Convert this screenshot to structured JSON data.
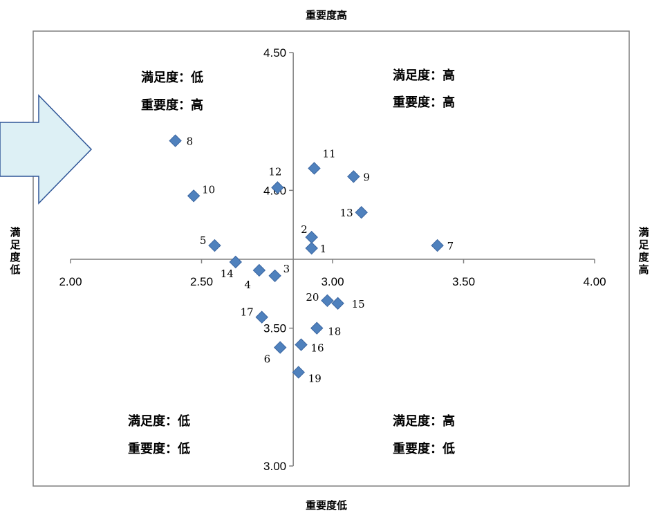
{
  "chart_data": {
    "type": "scatter",
    "xlim": [
      2.0,
      4.0
    ],
    "ylim": [
      3.0,
      4.5
    ],
    "x_ticks": [
      "2.00",
      "2.50",
      "3.00",
      "3.50",
      "4.00"
    ],
    "y_ticks": [
      "3.00",
      "3.50",
      "4.00",
      "4.50"
    ],
    "x_cross": 3.75,
    "y_cross": 2.85,
    "grid": false,
    "marker_color": "#4F81BD",
    "marker_stroke": "#3A65A0",
    "points": [
      {
        "id": "1",
        "x": 2.92,
        "y": 3.79
      },
      {
        "id": "2",
        "x": 2.92,
        "y": 3.83
      },
      {
        "id": "3",
        "x": 2.78,
        "y": 3.69
      },
      {
        "id": "4",
        "x": 2.72,
        "y": 3.71
      },
      {
        "id": "5",
        "x": 2.55,
        "y": 3.8
      },
      {
        "id": "6",
        "x": 2.8,
        "y": 3.43
      },
      {
        "id": "7",
        "x": 3.4,
        "y": 3.8
      },
      {
        "id": "8",
        "x": 2.4,
        "y": 4.18
      },
      {
        "id": "9",
        "x": 3.08,
        "y": 4.05
      },
      {
        "id": "10",
        "x": 2.47,
        "y": 3.98
      },
      {
        "id": "11",
        "x": 2.93,
        "y": 4.08
      },
      {
        "id": "12",
        "x": 2.79,
        "y": 4.01
      },
      {
        "id": "13",
        "x": 3.11,
        "y": 3.92
      },
      {
        "id": "14",
        "x": 2.63,
        "y": 3.74
      },
      {
        "id": "15",
        "x": 3.02,
        "y": 3.59
      },
      {
        "id": "16",
        "x": 2.88,
        "y": 3.44
      },
      {
        "id": "17",
        "x": 2.73,
        "y": 3.54
      },
      {
        "id": "18",
        "x": 2.94,
        "y": 3.5
      },
      {
        "id": "19",
        "x": 2.87,
        "y": 3.34
      },
      {
        "id": "20",
        "x": 2.98,
        "y": 3.6
      }
    ]
  },
  "axis_titles": {
    "top": "重要度高",
    "bottom": "重要度低",
    "left_chars": [
      "満",
      "足",
      "度",
      "低"
    ],
    "right_chars": [
      "満",
      "足",
      "度",
      "高"
    ]
  },
  "quadrants": {
    "top_left": [
      "満足度：低",
      "重要度：高"
    ],
    "top_right": [
      "満足度：高",
      "重要度：高"
    ],
    "bottom_left": [
      "満足度：低",
      "重要度：低"
    ],
    "bottom_right": [
      "満足度：高",
      "重要度：低"
    ]
  },
  "colors": {
    "plot_border": "#7F7F7F",
    "axis_line": "#7F7F7F",
    "arrow_fill": "#DDF0F5",
    "arrow_stroke": "#2E5597"
  }
}
